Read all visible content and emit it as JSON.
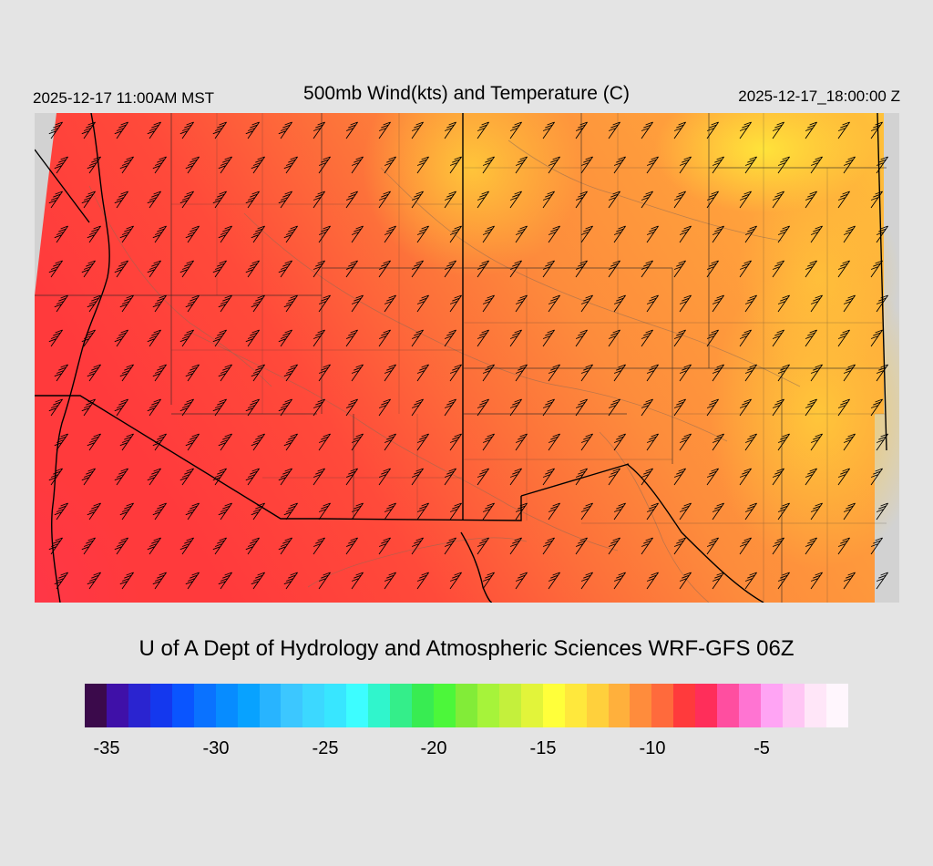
{
  "header": {
    "valid_local": "2025-12-17 11:00AM MST",
    "title": "500mb Wind(kts) and Temperature (C)",
    "valid_utc": "2025-12-17_18:00:00 Z"
  },
  "credit": "U of A Dept of Hydrology and Atmospheric Sciences WRF-GFS 06Z",
  "map": {
    "field": "500mb temperature with wind barbs",
    "colors": {
      "background": "#d2d2d2",
      "warm_east": "#ffbf3a",
      "mid": "#fd8c3c",
      "cool_west": "#ff4a3a",
      "coldest": "#ff3355",
      "boundaries": "#000000",
      "contours": "#8a6a55",
      "barbs": "#000000"
    },
    "wind_direction": "from the west-northwest"
  },
  "colorbar": {
    "colors": [
      "#3b0a4b",
      "#3f10a8",
      "#2a24d0",
      "#1438ee",
      "#0a55ff",
      "#0a72ff",
      "#078cff",
      "#08a2ff",
      "#28b4ff",
      "#3cc7ff",
      "#3cd8ff",
      "#38e6ff",
      "#3dfdff",
      "#30f5cc",
      "#34ee8a",
      "#38ec52",
      "#4cf73a",
      "#82ec38",
      "#a6f33a",
      "#c4f03c",
      "#e2f43a",
      "#ffff3a",
      "#ffe83c",
      "#ffd03c",
      "#ffb03c",
      "#ff8c3c",
      "#ff6a3c",
      "#ff3a3c",
      "#ff2e5a",
      "#ff4ea0",
      "#ff74d2",
      "#ffa4f4",
      "#ffc6f4",
      "#ffe6f8",
      "#fff6fd"
    ],
    "tick_labels": [
      "-35",
      "-30",
      "-25",
      "-20",
      "-15",
      "-10",
      "-5"
    ]
  }
}
